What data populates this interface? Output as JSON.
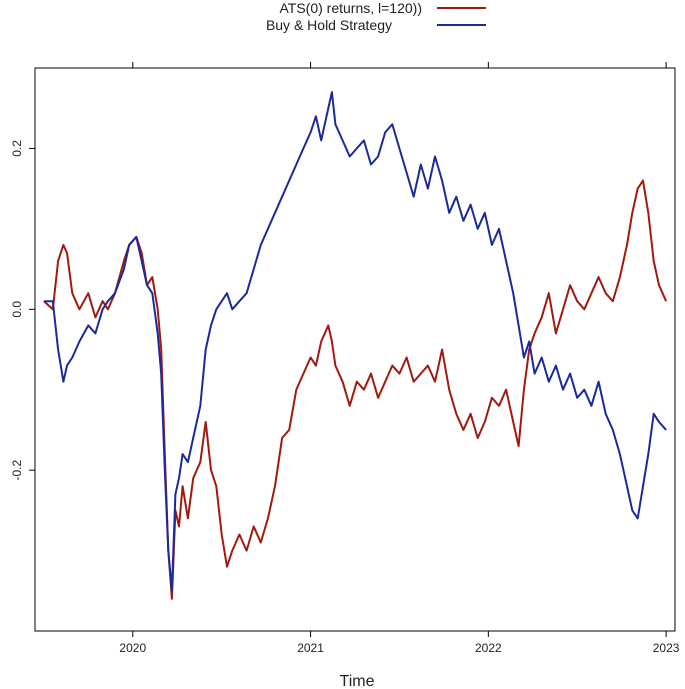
{
  "chart_data": {
    "type": "line",
    "title": "",
    "xlabel": "Time",
    "ylabel": "",
    "xlim": [
      2019.45,
      2023.05
    ],
    "ylim": [
      -0.4,
      0.3
    ],
    "x_ticks": [
      2020,
      2021,
      2022,
      2023
    ],
    "x_tick_labels": [
      "2020",
      "2021",
      "2022",
      "2023"
    ],
    "y_ticks": [
      -0.2,
      0.0,
      0.2
    ],
    "y_tick_labels": [
      "-0.2",
      "0.0",
      "0.2"
    ],
    "grid": false,
    "legend_position": "top",
    "series": [
      {
        "name": "ATS(0) returns, l=120))",
        "color": "#a01a10",
        "x": [
          2019.5,
          2019.55,
          2019.58,
          2019.61,
          2019.63,
          2019.66,
          2019.7,
          2019.75,
          2019.79,
          2019.83,
          2019.86,
          2019.9,
          2019.95,
          2019.98,
          2020.02,
          2020.05,
          2020.08,
          2020.11,
          2020.14,
          2020.16,
          2020.18,
          2020.2,
          2020.22,
          2020.24,
          2020.26,
          2020.28,
          2020.31,
          2020.34,
          2020.38,
          2020.41,
          2020.44,
          2020.47,
          2020.5,
          2020.53,
          2020.56,
          2020.6,
          2020.64,
          2020.68,
          2020.72,
          2020.76,
          2020.8,
          2020.84,
          2020.88,
          2020.92,
          2020.96,
          2021.0,
          2021.03,
          2021.06,
          2021.1,
          2021.12,
          2021.14,
          2021.18,
          2021.22,
          2021.26,
          2021.3,
          2021.34,
          2021.38,
          2021.42,
          2021.46,
          2021.5,
          2021.54,
          2021.58,
          2021.62,
          2021.66,
          2021.7,
          2021.74,
          2021.78,
          2021.82,
          2021.86,
          2021.9,
          2021.94,
          2021.98,
          2022.02,
          2022.06,
          2022.1,
          2022.14,
          2022.17,
          2022.2,
          2022.23,
          2022.26,
          2022.3,
          2022.34,
          2022.38,
          2022.42,
          2022.46,
          2022.5,
          2022.54,
          2022.58,
          2022.62,
          2022.66,
          2022.7,
          2022.74,
          2022.78,
          2022.81,
          2022.84,
          2022.87,
          2022.9,
          2022.93,
          2022.96,
          2023.0
        ],
        "values": [
          0.01,
          0.0,
          0.06,
          0.08,
          0.07,
          0.02,
          0.0,
          0.02,
          -0.01,
          0.01,
          0.0,
          0.02,
          0.06,
          0.08,
          0.09,
          0.07,
          0.03,
          0.04,
          0.0,
          -0.05,
          -0.18,
          -0.3,
          -0.36,
          -0.25,
          -0.27,
          -0.22,
          -0.26,
          -0.21,
          -0.19,
          -0.14,
          -0.2,
          -0.22,
          -0.28,
          -0.32,
          -0.3,
          -0.28,
          -0.3,
          -0.27,
          -0.29,
          -0.26,
          -0.22,
          -0.16,
          -0.15,
          -0.1,
          -0.08,
          -0.06,
          -0.07,
          -0.04,
          -0.02,
          -0.04,
          -0.07,
          -0.09,
          -0.12,
          -0.09,
          -0.1,
          -0.08,
          -0.11,
          -0.09,
          -0.07,
          -0.08,
          -0.06,
          -0.09,
          -0.08,
          -0.07,
          -0.09,
          -0.05,
          -0.1,
          -0.13,
          -0.15,
          -0.13,
          -0.16,
          -0.14,
          -0.11,
          -0.12,
          -0.1,
          -0.14,
          -0.17,
          -0.1,
          -0.05,
          -0.03,
          -0.01,
          0.02,
          -0.03,
          0.0,
          0.03,
          0.01,
          0.0,
          0.02,
          0.04,
          0.02,
          0.01,
          0.04,
          0.08,
          0.12,
          0.15,
          0.16,
          0.12,
          0.06,
          0.03,
          0.01
        ]
      },
      {
        "name": "Buy & Hold Strategy",
        "color": "#1a2a9a",
        "x": [
          2019.5,
          2019.55,
          2019.58,
          2019.61,
          2019.63,
          2019.66,
          2019.7,
          2019.75,
          2019.79,
          2019.83,
          2019.86,
          2019.9,
          2019.95,
          2019.98,
          2020.02,
          2020.05,
          2020.08,
          2020.11,
          2020.14,
          2020.16,
          2020.18,
          2020.2,
          2020.22,
          2020.24,
          2020.26,
          2020.28,
          2020.31,
          2020.34,
          2020.38,
          2020.41,
          2020.44,
          2020.47,
          2020.5,
          2020.53,
          2020.56,
          2020.6,
          2020.64,
          2020.68,
          2020.72,
          2020.76,
          2020.8,
          2020.84,
          2020.88,
          2020.92,
          2020.96,
          2021.0,
          2021.03,
          2021.06,
          2021.1,
          2021.12,
          2021.14,
          2021.18,
          2021.22,
          2021.26,
          2021.3,
          2021.34,
          2021.38,
          2021.42,
          2021.46,
          2021.5,
          2021.54,
          2021.58,
          2021.62,
          2021.66,
          2021.7,
          2021.74,
          2021.78,
          2021.82,
          2021.86,
          2021.9,
          2021.94,
          2021.98,
          2022.02,
          2022.06,
          2022.1,
          2022.14,
          2022.17,
          2022.2,
          2022.23,
          2022.26,
          2022.3,
          2022.34,
          2022.38,
          2022.42,
          2022.46,
          2022.5,
          2022.54,
          2022.58,
          2022.62,
          2022.66,
          2022.7,
          2022.74,
          2022.78,
          2022.81,
          2022.84,
          2022.87,
          2022.9,
          2022.93,
          2022.96,
          2023.0
        ],
        "values": [
          0.01,
          0.01,
          -0.05,
          -0.09,
          -0.07,
          -0.06,
          -0.04,
          -0.02,
          -0.03,
          0.0,
          0.01,
          0.02,
          0.05,
          0.08,
          0.09,
          0.06,
          0.03,
          0.02,
          -0.03,
          -0.08,
          -0.2,
          -0.3,
          -0.35,
          -0.23,
          -0.21,
          -0.18,
          -0.19,
          -0.16,
          -0.12,
          -0.05,
          -0.02,
          0.0,
          0.01,
          0.02,
          0.0,
          0.01,
          0.02,
          0.05,
          0.08,
          0.1,
          0.12,
          0.14,
          0.16,
          0.18,
          0.2,
          0.22,
          0.24,
          0.21,
          0.25,
          0.27,
          0.23,
          0.21,
          0.19,
          0.2,
          0.21,
          0.18,
          0.19,
          0.22,
          0.23,
          0.2,
          0.17,
          0.14,
          0.18,
          0.15,
          0.19,
          0.16,
          0.12,
          0.14,
          0.11,
          0.13,
          0.1,
          0.12,
          0.08,
          0.1,
          0.06,
          0.02,
          -0.02,
          -0.06,
          -0.04,
          -0.08,
          -0.06,
          -0.09,
          -0.07,
          -0.1,
          -0.08,
          -0.11,
          -0.1,
          -0.12,
          -0.09,
          -0.13,
          -0.15,
          -0.18,
          -0.22,
          -0.25,
          -0.26,
          -0.22,
          -0.18,
          -0.13,
          -0.14,
          -0.15
        ]
      }
    ]
  }
}
